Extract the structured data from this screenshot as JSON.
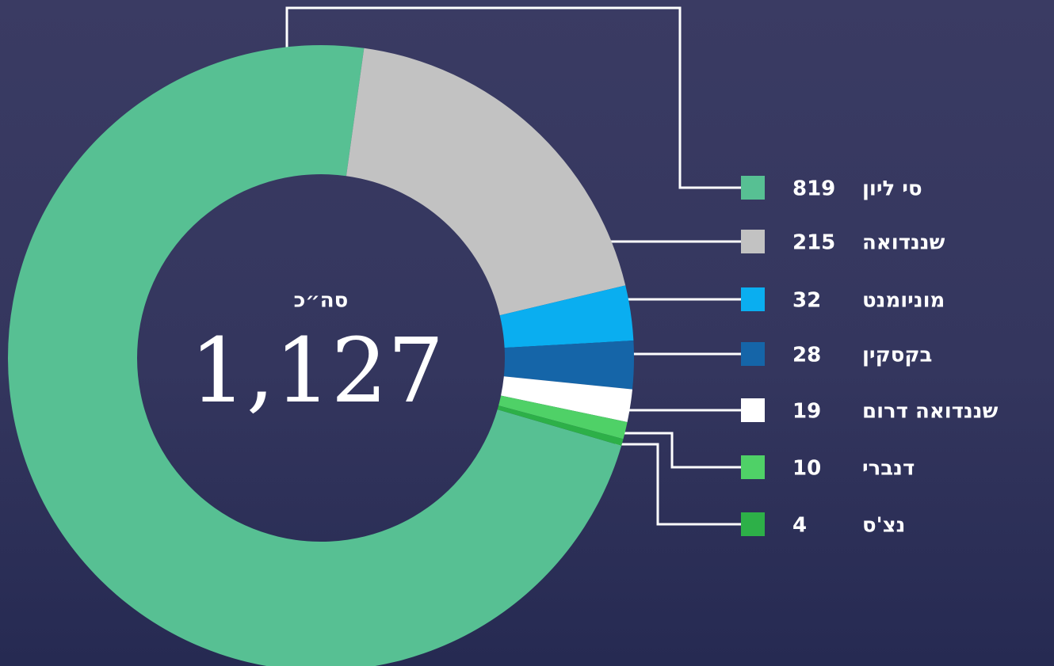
{
  "chart_data": {
    "type": "donut",
    "categories": [
      "סי ליון",
      "שננדואה",
      "מוניומנט",
      "בקסקין",
      "שננדואה דרום",
      "דנברי",
      "נצ'ס"
    ],
    "values": [
      819,
      215,
      32,
      28,
      19,
      10,
      4
    ],
    "colors": [
      "#57c093",
      "#c2c2c2",
      "#0aaef0",
      "#1565a8",
      "#ffffff",
      "#4fd167",
      "#2db048"
    ],
    "center_title": "סה״כ",
    "total": {
      "value": 1127,
      "label": "1,127"
    }
  }
}
